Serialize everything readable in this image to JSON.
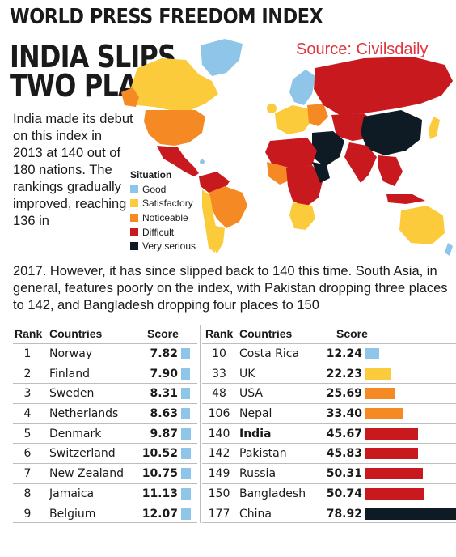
{
  "header": {
    "title": "WORLD PRESS FREEDOM INDEX",
    "headline_line1": "INDIA SLIPS",
    "headline_line2": "TWO PLACES",
    "source": "Source: Civilsdaily"
  },
  "intro": {
    "narrow": "India made its debut on this index in 2013 at 140 out of 180 nations. The rankings gradually improved, reaching 136 in",
    "wide": "2017. However, it has since slipped back to 140 this time. South Asia, in general, features poorly on the index, with Pakistan dropping three places to 142, and Bangladesh dropping four places to 150"
  },
  "legend": {
    "title": "Situation",
    "items": [
      {
        "label": "Good",
        "color": "#8ec5e8"
      },
      {
        "label": "Satisfactory",
        "color": "#fccb3b"
      },
      {
        "label": "Noticeable",
        "color": "#f58a25"
      },
      {
        "label": "Difficult",
        "color": "#c8191f"
      },
      {
        "label": "Very serious",
        "color": "#0e1a24"
      }
    ]
  },
  "colors": {
    "good": "#8ec5e8",
    "satisfactory": "#fccb3b",
    "noticeable": "#f58a25",
    "difficult": "#c8191f",
    "very_serious": "#0e1a24",
    "source_text": "#e0353e"
  },
  "map": {
    "icon": "world-map-choropleth"
  },
  "chart_data": {
    "type": "table",
    "title": "WORLD PRESS FREEDOM INDEX",
    "columns": [
      "Rank",
      "Countries",
      "Score"
    ],
    "score_axis_max": 78.92,
    "rows_left": [
      {
        "rank": "1",
        "country": "Norway",
        "score": "7.82",
        "value": 7.82,
        "situation": "good"
      },
      {
        "rank": "2",
        "country": "Finland",
        "score": "7.90",
        "value": 7.9,
        "situation": "good"
      },
      {
        "rank": "3",
        "country": "Sweden",
        "score": "8.31",
        "value": 8.31,
        "situation": "good"
      },
      {
        "rank": "4",
        "country": "Netherlands",
        "score": "8.63",
        "value": 8.63,
        "situation": "good"
      },
      {
        "rank": "5",
        "country": "Denmark",
        "score": "9.87",
        "value": 9.87,
        "situation": "good"
      },
      {
        "rank": "6",
        "country": "Switzerland",
        "score": "10.52",
        "value": 10.52,
        "situation": "good"
      },
      {
        "rank": "7",
        "country": "New Zealand",
        "score": "10.75",
        "value": 10.75,
        "situation": "good"
      },
      {
        "rank": "8",
        "country": "Jamaica",
        "score": "11.13",
        "value": 11.13,
        "situation": "good"
      },
      {
        "rank": "9",
        "country": "Belgium",
        "score": "12.07",
        "value": 12.07,
        "situation": "good"
      }
    ],
    "rows_right": [
      {
        "rank": "10",
        "country": "Costa Rica",
        "score": "12.24",
        "value": 12.24,
        "situation": "good"
      },
      {
        "rank": "33",
        "country": "UK",
        "score": "22.23",
        "value": 22.23,
        "situation": "satisfactory"
      },
      {
        "rank": "48",
        "country": "USA",
        "score": "25.69",
        "value": 25.69,
        "situation": "noticeable"
      },
      {
        "rank": "106",
        "country": "Nepal",
        "score": "33.40",
        "value": 33.4,
        "situation": "noticeable"
      },
      {
        "rank": "140",
        "country": "India",
        "score": "45.67",
        "value": 45.67,
        "situation": "difficult",
        "highlight": true
      },
      {
        "rank": "142",
        "country": "Pakistan",
        "score": "45.83",
        "value": 45.83,
        "situation": "difficult"
      },
      {
        "rank": "149",
        "country": "Russia",
        "score": "50.31",
        "value": 50.31,
        "situation": "difficult"
      },
      {
        "rank": "150",
        "country": "Bangladesh",
        "score": "50.74",
        "value": 50.74,
        "situation": "difficult"
      },
      {
        "rank": "177",
        "country": "China",
        "score": "78.92",
        "value": 78.92,
        "situation": "very_serious"
      }
    ]
  }
}
